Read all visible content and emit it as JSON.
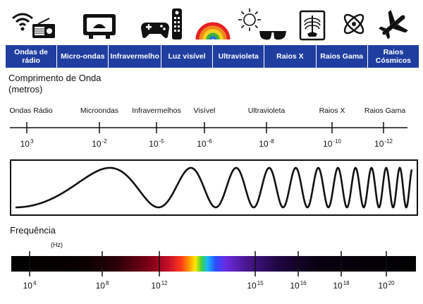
{
  "icons": [
    "wifi-radio-icon",
    "microwave-icon",
    "remote-gamepad-icon",
    "rainbow-icon",
    "sun-sunglasses-icon",
    "xray-icon",
    "atom-icon",
    "airplane-icon"
  ],
  "colors": {
    "band_bar": "#1f3ea0",
    "band_text": "#ffffff"
  },
  "bands": [
    {
      "label": "Ondas de rádio"
    },
    {
      "label": "Micro-ondas"
    },
    {
      "label": "Infravermelho"
    },
    {
      "label": "Luz visível"
    },
    {
      "label": "Ultravioleta"
    },
    {
      "label": "Raios X"
    },
    {
      "label": "Raios Gama"
    },
    {
      "label": "Raios Cósmicos"
    }
  ],
  "wavelength": {
    "title_line1": "Comprimento de Onda",
    "title_line2": "(metros)",
    "labels": [
      "Ondas Rádio",
      "Microondas",
      "Infravermelhos",
      "Visível",
      "Ultravioleta",
      "Raios X",
      "Raios Gama"
    ],
    "ticks": [
      {
        "base": "10",
        "exp": "3"
      },
      {
        "base": "10",
        "exp": "-2"
      },
      {
        "base": "10",
        "exp": "-5"
      },
      {
        "base": "10",
        "exp": "-6"
      },
      {
        "base": "10",
        "exp": "-8"
      },
      {
        "base": "10",
        "exp": "-10"
      },
      {
        "base": "10",
        "exp": "-12"
      }
    ]
  },
  "frequency": {
    "title": "Frequência",
    "unit": "(Hz)",
    "ticks": [
      {
        "base": "10",
        "exp": "4"
      },
      {
        "base": "10",
        "exp": "8"
      },
      {
        "base": "10",
        "exp": "12"
      },
      {
        "base": "10",
        "exp": "15"
      },
      {
        "base": "10",
        "exp": "16"
      },
      {
        "base": "10",
        "exp": "18"
      },
      {
        "base": "10",
        "exp": "20"
      }
    ]
  }
}
